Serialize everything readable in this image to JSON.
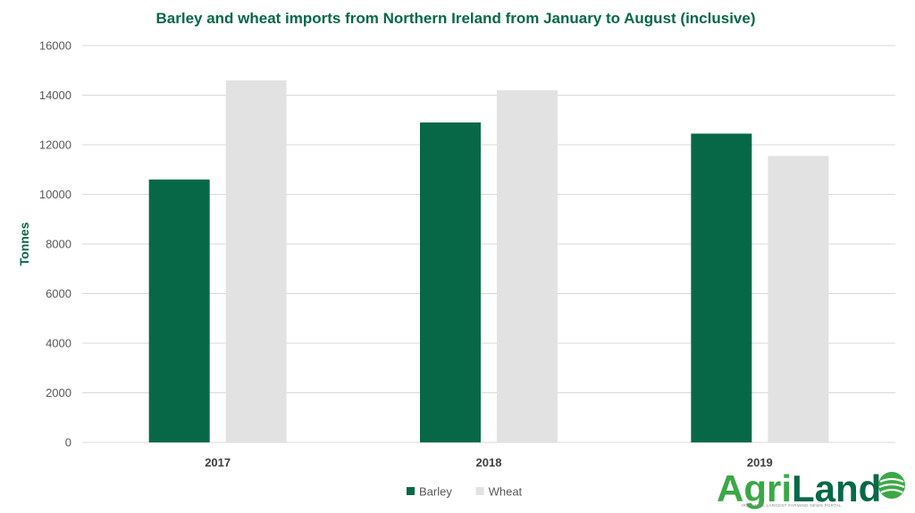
{
  "chart_data": {
    "type": "bar",
    "title": "Barley and wheat imports from Northern Ireland from January to August (inclusive)",
    "xlabel": "",
    "ylabel": "Tonnes",
    "categories": [
      "2017",
      "2018",
      "2019"
    ],
    "series": [
      {
        "name": "Barley",
        "values": [
          10600,
          12900,
          12450
        ],
        "color": "#076848"
      },
      {
        "name": "Wheat",
        "values": [
          14600,
          14200,
          11550
        ],
        "color": "#e2e2e2"
      }
    ],
    "ylim": [
      0,
      16000
    ],
    "yticks": [
      0,
      2000,
      4000,
      6000,
      8000,
      10000,
      12000,
      14000,
      16000
    ],
    "grid": true,
    "legend_position": "bottom-center"
  },
  "colors": {
    "title": "#076848",
    "axis_title": "#076848",
    "grid": "#d9d9d9"
  },
  "logo": {
    "text_agri": "Agri",
    "text_land": "Land",
    "tagline": "IRELAND'S LARGEST FARMING NEWS PORTAL",
    "icon": "leaf-globe-icon"
  }
}
